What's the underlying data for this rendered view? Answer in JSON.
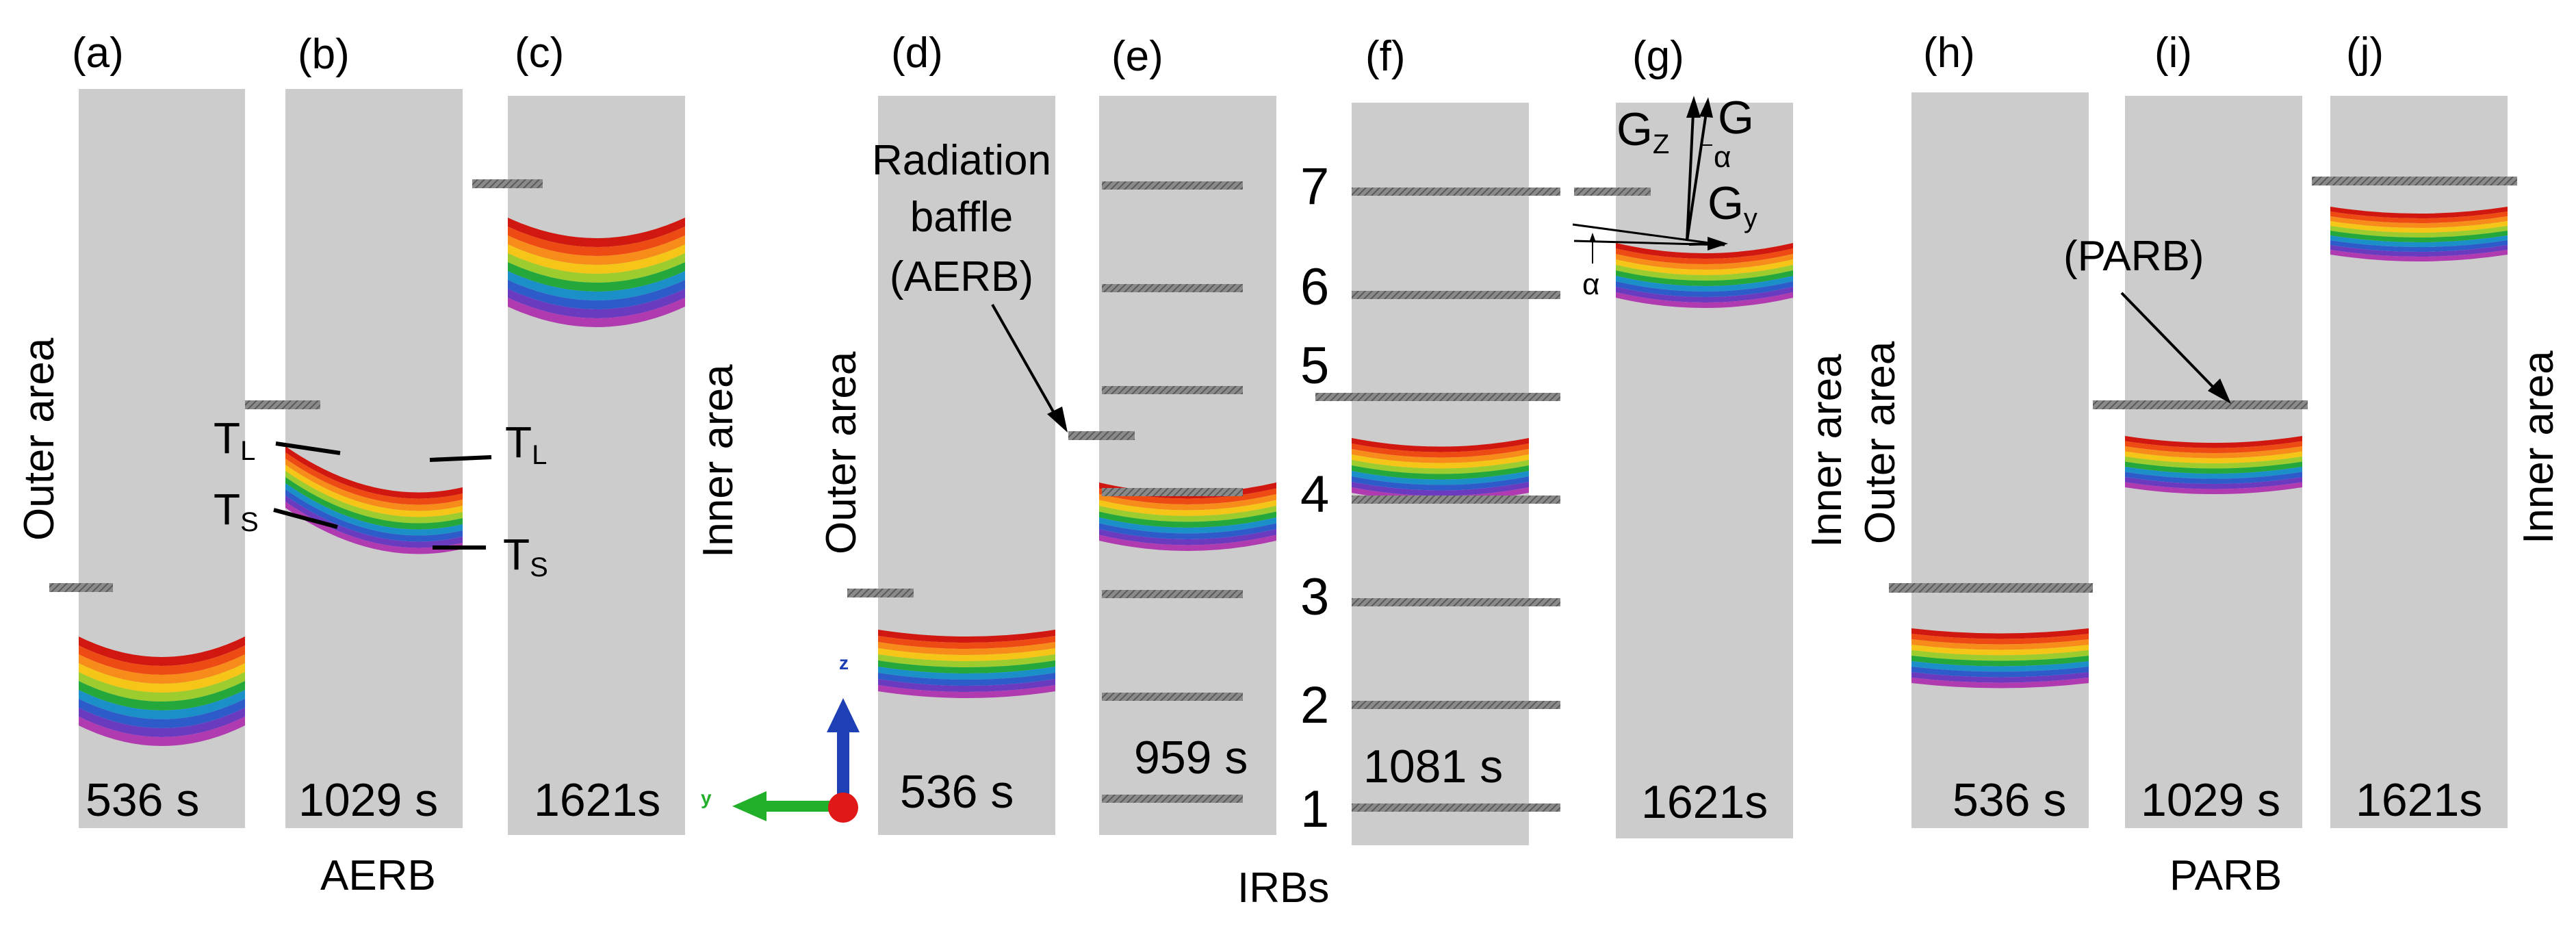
{
  "panels": [
    {
      "label": "(a)",
      "time": "536 s"
    },
    {
      "label": "(b)",
      "time": "1029 s"
    },
    {
      "label": "(c)",
      "time": "1621s"
    },
    {
      "label": "(d)",
      "time": "536 s"
    },
    {
      "label": "(e)",
      "time": "959 s"
    },
    {
      "label": "(f)",
      "time": "1081 s"
    },
    {
      "label": "(g)",
      "time": "1621s"
    },
    {
      "label": "(h)",
      "time": "536 s"
    },
    {
      "label": "(i)",
      "time": "1029 s"
    },
    {
      "label": "(j)",
      "time": "1621s"
    }
  ],
  "groups": {
    "aerb": "AERB",
    "irbs": "IRBs",
    "parb": "PARB"
  },
  "areas": {
    "outer": "Outer area",
    "inner": "Inner area"
  },
  "annotations": {
    "baffle_line1": "Radiation",
    "baffle_line2": "baffle",
    "baffle_line3": "(AERB)",
    "parb": "(PARB)",
    "tl_main": "T",
    "tl_sub": "L",
    "ts_main": "T",
    "ts_sub": "S"
  },
  "baffle_numbers": [
    "1",
    "2",
    "3",
    "4",
    "5",
    "6",
    "7"
  ],
  "vectors": {
    "g_main": "G",
    "g_sub": "",
    "gz_main": "G",
    "gz_sub": "Z",
    "gy_main": "G",
    "gy_sub": "y",
    "alpha": "α"
  },
  "axes": {
    "z": "z",
    "y": "y"
  },
  "colors": {
    "furnace": "#cccccc",
    "bands": [
      "#d01810",
      "#ee4a14",
      "#f78c1a",
      "#f5c518",
      "#9ccc2e",
      "#24a83c",
      "#1a8fc8",
      "#2d5bc9",
      "#6a3bbf",
      "#b03aaf"
    ],
    "axis_z": "#1f3fb4",
    "axis_y": "#22b02a",
    "origin": "#e01818"
  }
}
